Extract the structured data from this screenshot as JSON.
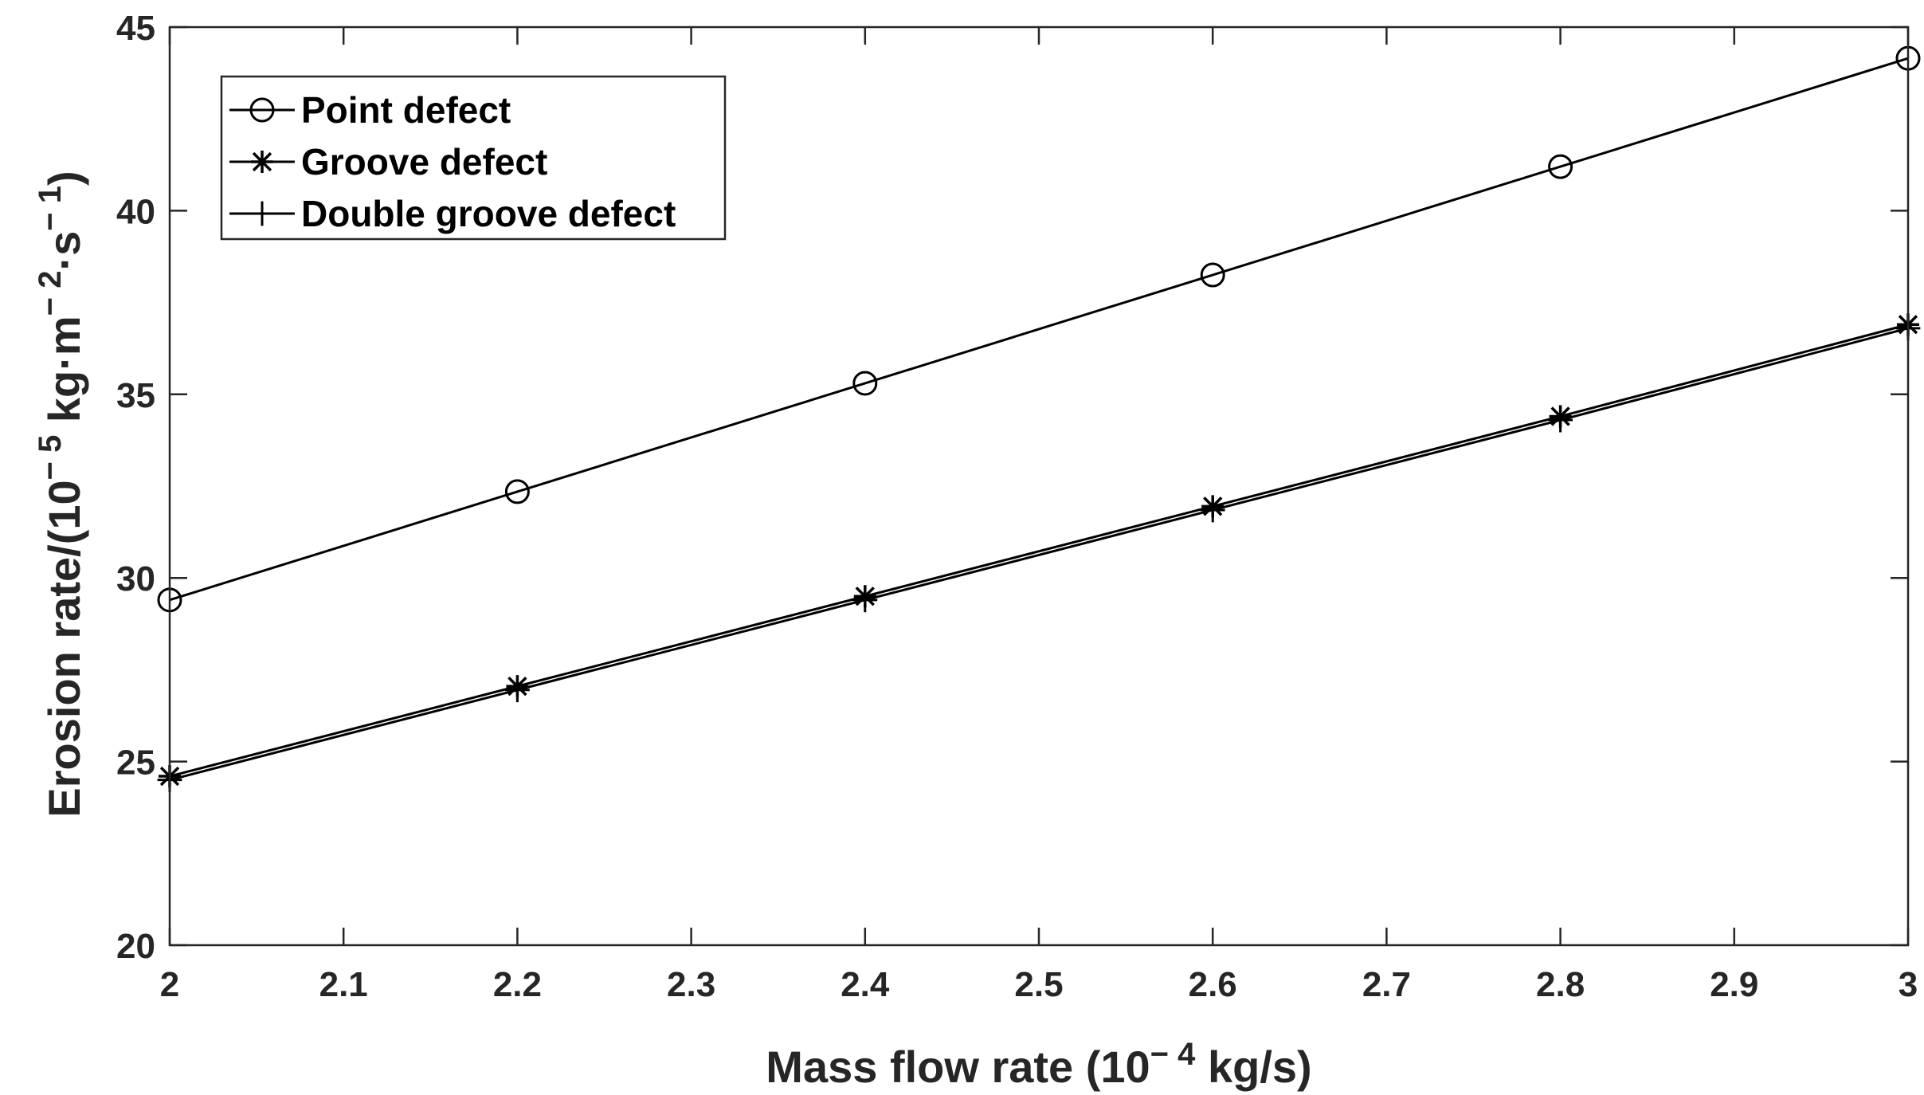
{
  "chart_data": {
    "type": "line",
    "title": "",
    "xlabel": {
      "prefix": "Mass flow rate (10",
      "sup": "− 4",
      "suffix": " kg/s)"
    },
    "ylabel": {
      "prefix": "Erosion rate/(10",
      "sup1": "− 5",
      "middle": " kg·m",
      "sup2": "− 2",
      "middle2": "·s",
      "sup3": "− 1",
      "suffix": ")"
    },
    "xlim": [
      2,
      3
    ],
    "ylim": [
      20,
      45
    ],
    "xticks": [
      2,
      2.1,
      2.2,
      2.3,
      2.4,
      2.5,
      2.6,
      2.7,
      2.8,
      2.9,
      3
    ],
    "xtick_labels": [
      "2",
      "2.1",
      "2.2",
      "2.3",
      "2.4",
      "2.5",
      "2.6",
      "2.7",
      "2.8",
      "2.9",
      "3"
    ],
    "yticks": [
      20,
      25,
      30,
      35,
      40,
      45
    ],
    "ytick_labels": [
      "20",
      "25",
      "30",
      "35",
      "40",
      "45"
    ],
    "grid": false,
    "legend_position": "top-left",
    "x": [
      2.0,
      2.2,
      2.4,
      2.6,
      2.8,
      3.0
    ],
    "series": [
      {
        "name": "Point defect",
        "marker": "circle",
        "color": "#000000",
        "values": [
          29.4,
          32.35,
          35.3,
          38.25,
          41.2,
          44.15
        ]
      },
      {
        "name": "Groove defect",
        "marker": "asterisk",
        "color": "#000000",
        "values": [
          24.6,
          27.05,
          29.5,
          31.95,
          34.4,
          36.9
        ]
      },
      {
        "name": "Double groove defect",
        "marker": "plus",
        "color": "#000000",
        "values": [
          24.5,
          26.95,
          29.4,
          31.85,
          34.3,
          36.8
        ]
      }
    ]
  }
}
